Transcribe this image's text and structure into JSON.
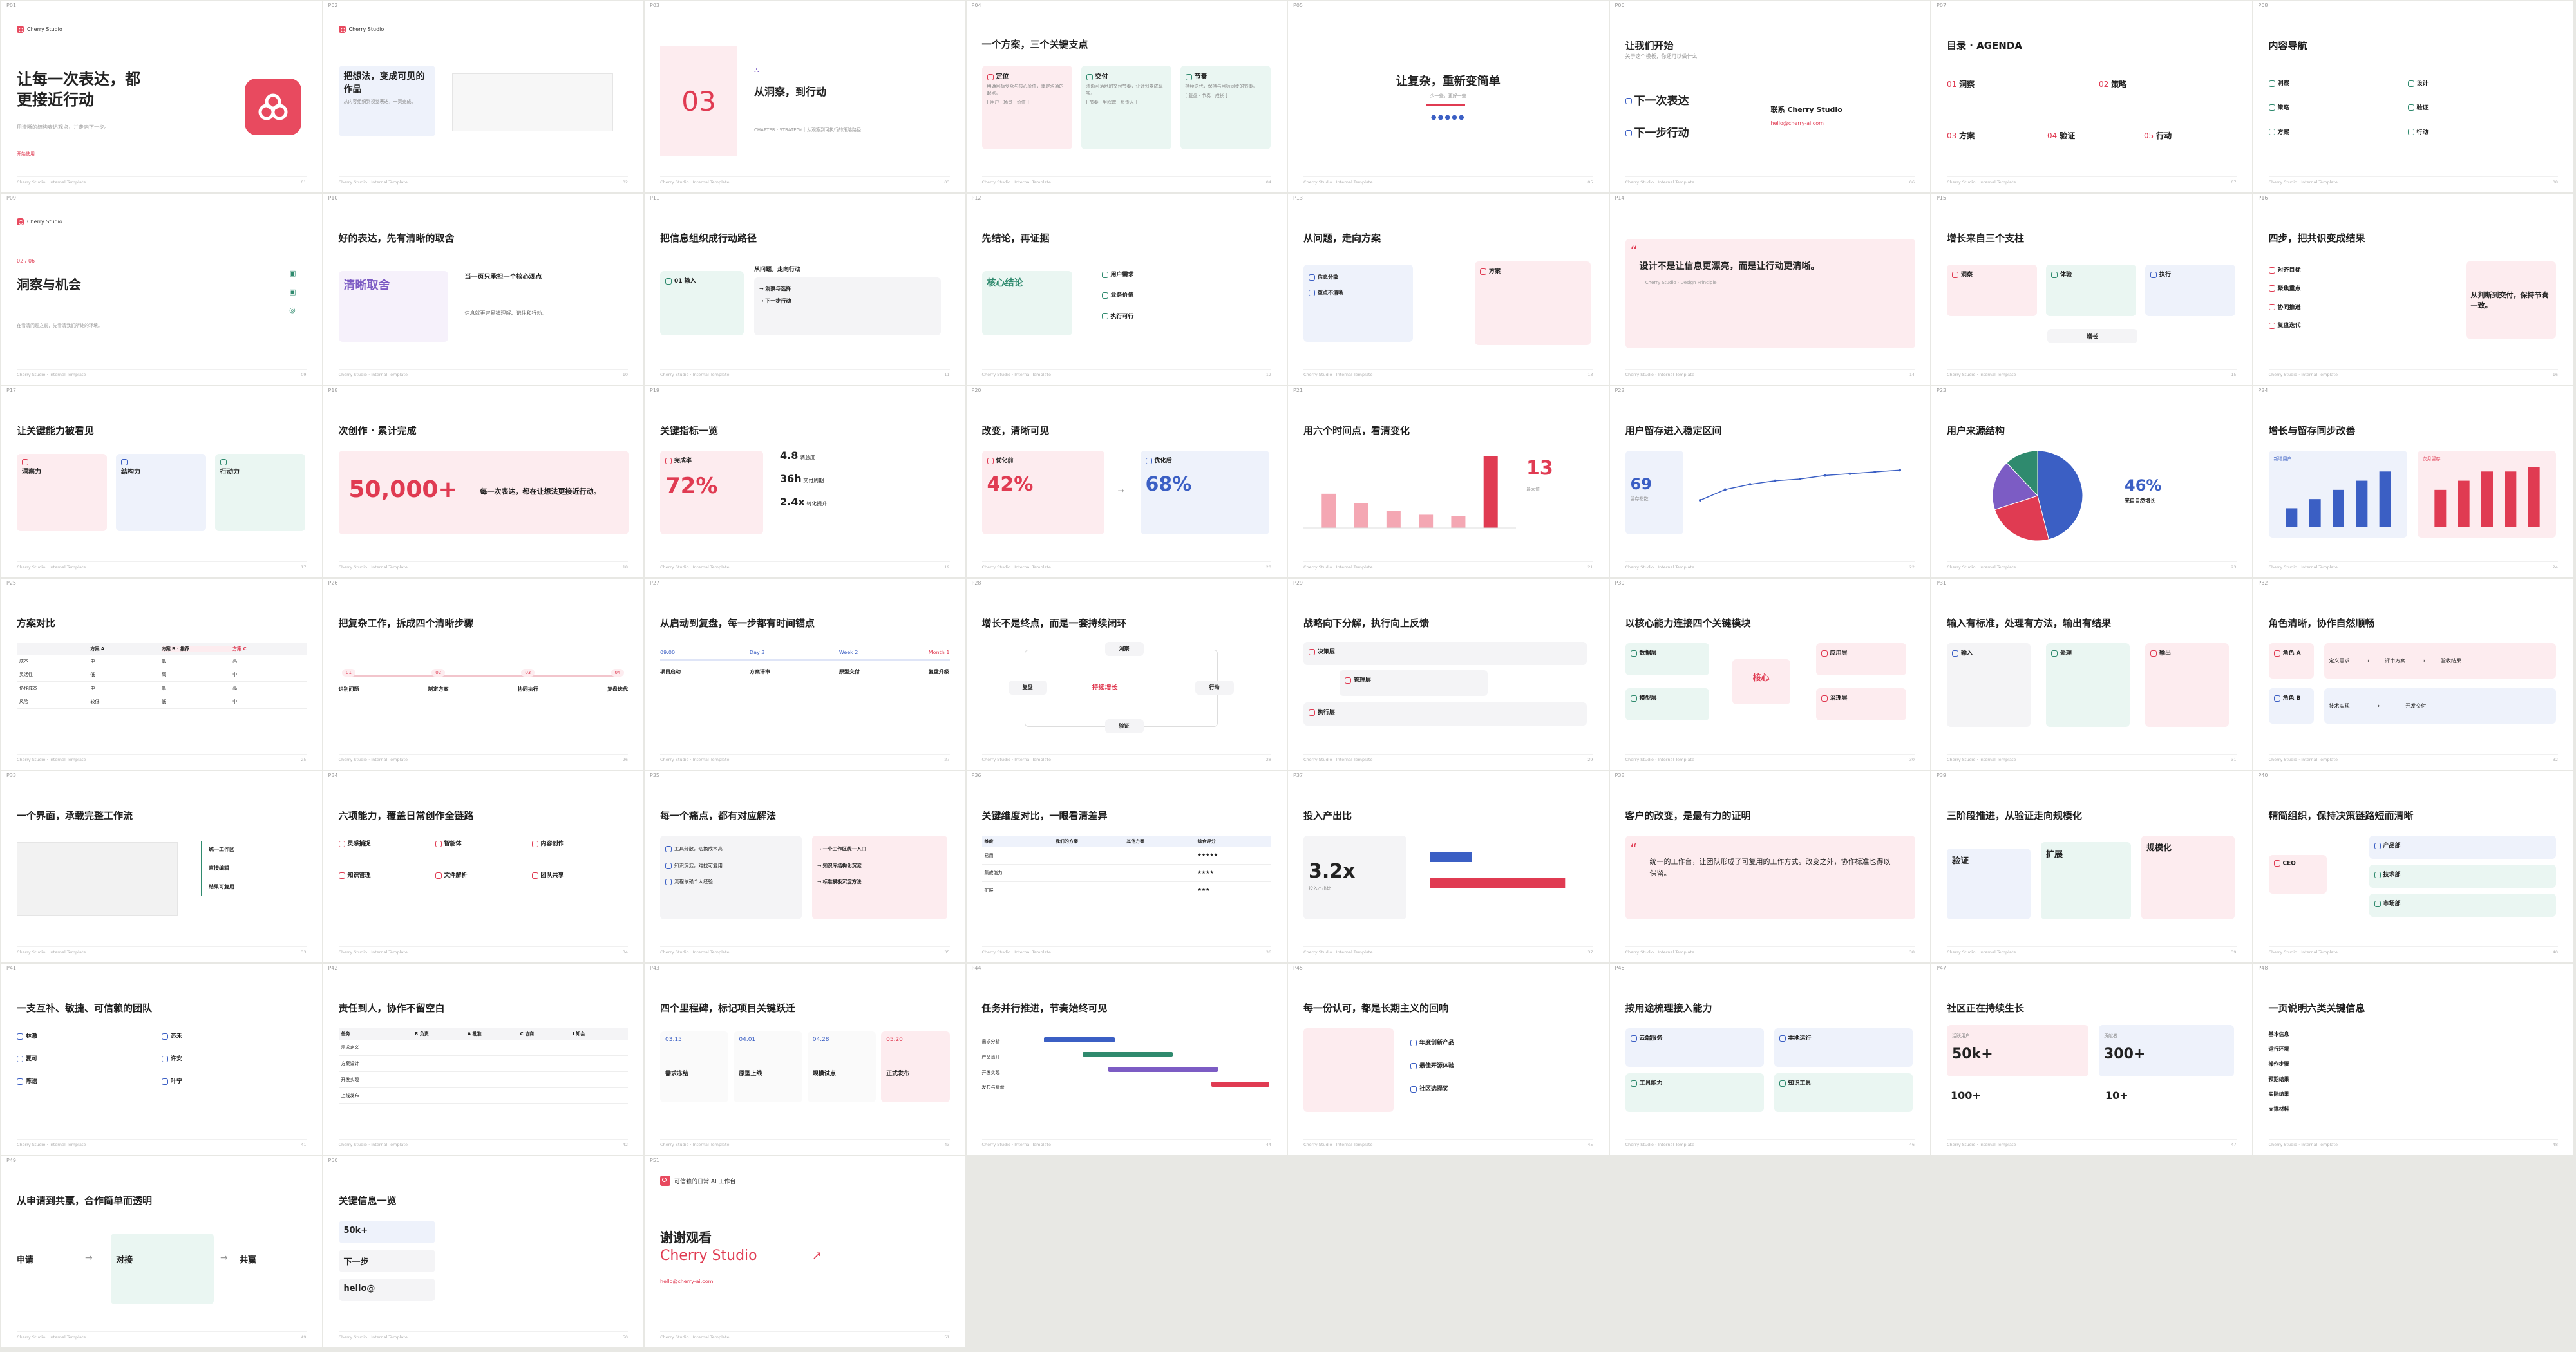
{
  "brand": "Cherry Studio",
  "footer_left": "Cherry Studio · Internal Template",
  "slides": [
    {
      "no": "P01",
      "title": "让每一次表达，都更接近行动",
      "sub": "用清晰的结构表达观点，并走向下一步。",
      "tag": "开始使用"
    },
    {
      "no": "P02",
      "title": "把想法，变成可见的作品",
      "sub": "从内容组织到视觉表达，一页完成。"
    },
    {
      "no": "P03",
      "num": "03",
      "title": "从洞察，到行动",
      "sub": "CHAPTER · STRATEGY｜从观察到可执行的策略路径"
    },
    {
      "no": "P04",
      "title": "一个方案，三个关键支点",
      "cards": [
        {
          "t": "定位",
          "d": "明确目标受众与核心价值，奠定沟通的起点。",
          "k": "[ 用户 · 场景 · 价值 ]"
        },
        {
          "t": "交付",
          "d": "清晰可落地的交付节奏，让计划变成现实。",
          "k": "[ 节奏 · 里程碑 · 负责人 ]"
        },
        {
          "t": "节奏",
          "d": "持续迭代，保持与目标同步的节奏。",
          "k": "[ 复盘 · 节奏 · 成长 ]"
        }
      ]
    },
    {
      "no": "P05",
      "title": "让复杂，重新变简单",
      "sub": "少一些，更好一些"
    },
    {
      "no": "P06",
      "title": "让我们开始",
      "sub": "关于这个模板，你还可以做什么",
      "items": [
        "下一次表达",
        "下一步行动"
      ],
      "contact": "联系 Cherry Studio",
      "email": "hello@cherry-ai.com"
    },
    {
      "no": "P07",
      "title": "目录 · AGENDA",
      "items": [
        {
          "n": "01",
          "t": "洞察"
        },
        {
          "n": "02",
          "t": "策略"
        },
        {
          "n": "03",
          "t": "方案"
        },
        {
          "n": "04",
          "t": "验证"
        },
        {
          "n": "05",
          "t": "行动"
        }
      ]
    },
    {
      "no": "P08",
      "title": "内容导航",
      "items": [
        "洞察",
        "设计",
        "策略",
        "验证",
        "方案",
        "行动"
      ]
    },
    {
      "no": "P09",
      "num": "02 / 06",
      "title": "洞察与机会",
      "sub": "在看清问题之前，先看清我们所处的环境。"
    },
    {
      "no": "P10",
      "title": "好的表达，先有清晰的取舍",
      "key": "清晰取舍",
      "sub1": "当一页只承担一个核心观点",
      "sub2": "信息就更容易被理解、记住和行动。"
    },
    {
      "no": "P11",
      "title": "把信息组织成行动路径",
      "steps": [
        "01 输入",
        "从问题，走向行动",
        "洞察与选择",
        "下一步行动"
      ]
    },
    {
      "no": "P12",
      "title": "先结论，再证据",
      "key": "核心结论",
      "list": [
        "用户需求",
        "业务价值",
        "执行可行"
      ]
    },
    {
      "no": "P13",
      "title": "从问题，走向方案",
      "left": [
        "信息分散",
        "重点不清晰"
      ],
      "right": "方案"
    },
    {
      "no": "P14",
      "quote": "设计不是让信息更漂亮，而是让行动更清晰。",
      "by": "— Cherry Studio · Design Principle"
    },
    {
      "no": "P15",
      "title": "增长来自三个支柱",
      "cards": [
        "洞察",
        "体验",
        "执行"
      ],
      "base": "增长"
    },
    {
      "no": "P16",
      "title": "四步，把共识变成结果",
      "list": [
        "对齐目标",
        "聚焦重点",
        "协同推进",
        "复盘迭代"
      ],
      "key": "从判断到交付，保持节奏一致。"
    },
    {
      "no": "P17",
      "title": "让关键能力被看见",
      "cards": [
        "洞察力",
        "结构力",
        "行动力"
      ]
    },
    {
      "no": "P18",
      "title": "次创作 · 累计完成",
      "big": "50,000+",
      "desc": "每一次表达，都在让想法更接近行动。"
    },
    {
      "no": "P19",
      "title": "关键指标一览",
      "kpi": "72%",
      "kpi_label": "完成率",
      "metrics": [
        {
          "v": "4.8",
          "l": "满意度"
        },
        {
          "v": "36h",
          "l": "交付周期"
        },
        {
          "v": "2.4x",
          "l": "转化提升"
        }
      ]
    },
    {
      "no": "P20",
      "title": "改变，清晰可见",
      "before": "42%",
      "before_l": "优化前",
      "after": "68%",
      "after_l": "优化后"
    },
    {
      "no": "P21",
      "title": "用六个时间点，看清变化",
      "big": "13",
      "big_l": "最大值"
    },
    {
      "no": "P22",
      "title": "用户留存进入稳定区间",
      "big": "69",
      "big_l": "留存指数"
    },
    {
      "no": "P23",
      "title": "用户来源结构",
      "big": "46%",
      "big_l": "来自自然增长"
    },
    {
      "no": "P24",
      "title": "增长与留存同步改善",
      "l1": "新增用户",
      "l2": "次月留存"
    },
    {
      "no": "P25",
      "title": "方案对比",
      "cols": [
        "方案 A",
        "方案 B · 推荐",
        "方案 C"
      ],
      "rows": [
        [
          "成本",
          "中",
          "低",
          "高"
        ],
        [
          "灵活性",
          "低",
          "高",
          "中"
        ],
        [
          "协作成本",
          "中",
          "低",
          "高"
        ],
        [
          "风险",
          "较低",
          "低",
          "中"
        ]
      ]
    },
    {
      "no": "P26",
      "title": "把复杂工作，拆成四个清晰步骤",
      "steps": [
        {
          "n": "01",
          "t": "识别问题"
        },
        {
          "n": "02",
          "t": "制定方案"
        },
        {
          "n": "03",
          "t": "协同执行"
        },
        {
          "n": "04",
          "t": "复盘迭代"
        }
      ]
    },
    {
      "no": "P27",
      "title": "从启动到复盘，每一步都有时间锚点",
      "steps": [
        {
          "d": "09:00",
          "t": "项目启动"
        },
        {
          "d": "Day 3",
          "t": "方案评审"
        },
        {
          "d": "Week 2",
          "t": "原型交付"
        },
        {
          "d": "Month 1",
          "t": "复盘升级"
        }
      ]
    },
    {
      "no": "P28",
      "title": "增长不是终点，而是一套持续闭环",
      "nodes": [
        "洞察",
        "行动",
        "验证",
        "复盘"
      ],
      "center": "持续增长"
    },
    {
      "no": "P29",
      "title": "战略向下分解，执行向上反馈",
      "rows": [
        "决策层",
        "管理层",
        "执行层"
      ]
    },
    {
      "no": "P30",
      "title": "以核心能力连接四个关键模块",
      "center": "核心",
      "mods": [
        "数据层",
        "模型层",
        "应用层",
        "治理层"
      ]
    },
    {
      "no": "P31",
      "title": "输入有标准，处理有方法，输出有结果",
      "cols": [
        "输入",
        "处理",
        "输出"
      ]
    },
    {
      "no": "P32",
      "title": "角色清晰，协作自然顺畅",
      "roles": [
        "角色 A",
        "角色 B"
      ],
      "flow": [
        "定义需求",
        "评审方案",
        "验收结果",
        "技术实现",
        "开发交付"
      ]
    },
    {
      "no": "P33",
      "title": "一个界面，承载完整工作流",
      "list": [
        "统一工作区",
        "直接编辑",
        "结果可复用"
      ]
    },
    {
      "no": "P34",
      "title": "六项能力，覆盖日常创作全链路",
      "caps": [
        "灵感捕捉",
        "智能体",
        "内容创作",
        "知识管理",
        "文件解析",
        "团队共享"
      ]
    },
    {
      "no": "P35",
      "title": "每一个痛点，都有对应解法",
      "pains": [
        "工具分散，切换成本高",
        "知识沉淀，难找可复用",
        "流程依赖个人经验"
      ],
      "fixes": [
        "一个工作区统一入口",
        "知识库结构化沉淀",
        "标准模板沉淀方法"
      ]
    },
    {
      "no": "P36",
      "title": "关键维度对比，一眼看清差异",
      "head": [
        "维度",
        "我们的方案",
        "其他方案",
        "综合评分"
      ],
      "rows": [
        "易用",
        "集成能力",
        "扩展"
      ]
    },
    {
      "no": "P37",
      "title": "投入产出比",
      "big": "3.2x",
      "big_l": "投入产出比"
    },
    {
      "no": "P38",
      "title": "客户的改变，是最有力的证明",
      "quote": "统一的工作台，让团队形成了可复用的工作方式。改变之外，协作标准也得以保留。"
    },
    {
      "no": "P39",
      "title": "三阶段推进，从验证走向规模化",
      "phases": [
        "验证",
        "扩展",
        "规模化"
      ]
    },
    {
      "no": "P40",
      "title": "精简组织，保持决策链路短而清晰",
      "root": "CEO",
      "teams": [
        "产品部",
        "技术部",
        "市场部"
      ]
    },
    {
      "no": "P41",
      "title": "一支互补、敏捷、可信赖的团队",
      "people": [
        "林澈",
        "苏禾",
        "夏可",
        "许安",
        "陈语",
        "叶宁"
      ]
    },
    {
      "no": "P42",
      "title": "责任到人，协作不留空白",
      "head": [
        "任务",
        "R 负责",
        "A 批准",
        "C 协商",
        "I 知会"
      ],
      "rows": [
        "需求定义",
        "方案设计",
        "开发实现",
        "上线发布"
      ]
    },
    {
      "no": "P43",
      "title": "四个里程碑，标记项目关键跃迁",
      "ms": [
        {
          "d": "03.15",
          "t": "需求冻结"
        },
        {
          "d": "04.01",
          "t": "原型上线"
        },
        {
          "d": "04.28",
          "t": "规模试点"
        },
        {
          "d": "05.20",
          "t": "正式发布"
        }
      ]
    },
    {
      "no": "P44",
      "title": "任务并行推进，节奏始终可见",
      "tasks": [
        "需求分析",
        "产品设计",
        "开发实现",
        "发布与复盘"
      ]
    },
    {
      "no": "P45",
      "title": "每一份认可，都是长期主义的回响",
      "awards": [
        "年度创新产品",
        "最佳开源体验",
        "社区选择奖"
      ]
    },
    {
      "no": "P46",
      "title": "按用途梳理接入能力",
      "groups": [
        "云端服务",
        "本地运行",
        "工具能力",
        "知识工具"
      ]
    },
    {
      "no": "P47",
      "title": "社区正在持续生长",
      "stats": [
        {
          "v": "50k+",
          "l": "活跃用户"
        },
        {
          "v": "300+",
          "l": "贡献者"
        },
        {
          "v": "100+",
          "l": "插件"
        },
        {
          "v": "10+",
          "l": "语言"
        }
      ]
    },
    {
      "no": "P48",
      "title": "一页说明六类关键信息",
      "items": [
        "基本信息",
        "运行环境",
        "操作步骤",
        "预期结果",
        "实际结果",
        "支撑材料"
      ]
    },
    {
      "no": "P49",
      "title": "从申请到共赢，合作简单而透明",
      "steps": [
        "申请",
        "对接",
        "共赢"
      ]
    },
    {
      "no": "P50",
      "title": "关键信息一览",
      "stats": [
        "50k+",
        "下一步",
        "hello@"
      ]
    },
    {
      "no": "P51",
      "thanks": "谢谢观看",
      "name": "Cherry Studio",
      "email": "hello@cherry-ai.com",
      "tagline": "可信赖的日常 AI 工作台"
    }
  ],
  "chart_p21": {
    "type": "bar",
    "values": [
      6.2,
      4.5,
      3.1,
      2.4,
      2.1,
      13
    ]
  },
  "chart_p22": {
    "type": "line",
    "values": [
      52,
      58,
      61,
      63,
      64,
      66,
      67,
      68,
      69
    ]
  },
  "chart_p23": {
    "type": "pie",
    "values": [
      46,
      24,
      18,
      12
    ]
  },
  "chart_p24": {
    "type": "bar",
    "series": [
      {
        "name": "新增用户",
        "values": [
          2,
          3,
          4,
          5,
          6
        ]
      },
      {
        "name": "次月留存",
        "values": [
          4,
          5,
          6,
          6,
          6.5
        ]
      }
    ]
  },
  "chart_p37": {
    "type": "bar",
    "values": [
      1,
      3.2
    ]
  },
  "colors": {
    "accent": "#e03b52",
    "green": "#2f8a6e",
    "blue": "#3b5fc4"
  }
}
